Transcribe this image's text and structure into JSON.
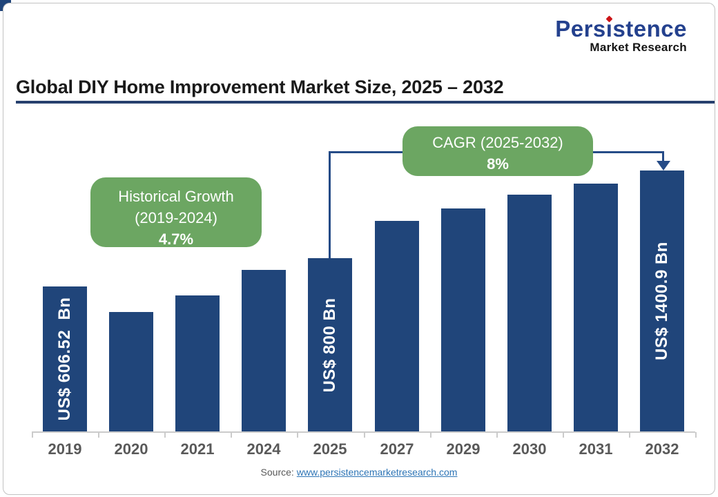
{
  "logo": {
    "name": "Persistence",
    "tagline": "Market Research",
    "name_color": "#24418E",
    "dot_color": "#CC1417"
  },
  "title": {
    "text": "Global DIY Home Improvement Market Size, 2025 – 2032",
    "underline_color": "#27406E"
  },
  "annotations": {
    "historical": {
      "line1": "Historical Growth",
      "line2": "(2019-2024)",
      "line3": "4.7%",
      "bg_color": "#6CA662"
    },
    "cagr": {
      "line1": "CAGR (2025-2032)",
      "line2": "8%",
      "bg_color": "#6CA662"
    }
  },
  "source": {
    "prefix": "Source:",
    "link": "www.persistencemarketresearch.com",
    "link_color": "#2E75B6"
  },
  "chart_data": {
    "type": "bar",
    "title": "Global DIY Home Improvement Market Size, 2025 – 2032",
    "unit": "US$ Bn",
    "categories": [
      "2019",
      "2020",
      "2021",
      "2024",
      "2025",
      "2027",
      "2029",
      "2030",
      "2031",
      "2032"
    ],
    "values": [
      606.52,
      432,
      546,
      720,
      800,
      1055,
      1140,
      1235,
      1310,
      1400.9
    ],
    "value_is_estimated": [
      false,
      true,
      true,
      true,
      false,
      true,
      true,
      true,
      true,
      false
    ],
    "bar_labels": [
      "US$ 606.52  Bn",
      "",
      "",
      "",
      "US$ 800 Bn",
      "",
      "",
      "",
      "",
      "US$ 1400.9 Bn"
    ],
    "historical_growth_pct": 4.7,
    "cagr_pct": 8,
    "bar_color": "#20457A",
    "axis_color": "#CBCBCB",
    "tick_label_color": "#595959",
    "gridlines": false,
    "legend": false,
    "value_axis": "hidden"
  }
}
